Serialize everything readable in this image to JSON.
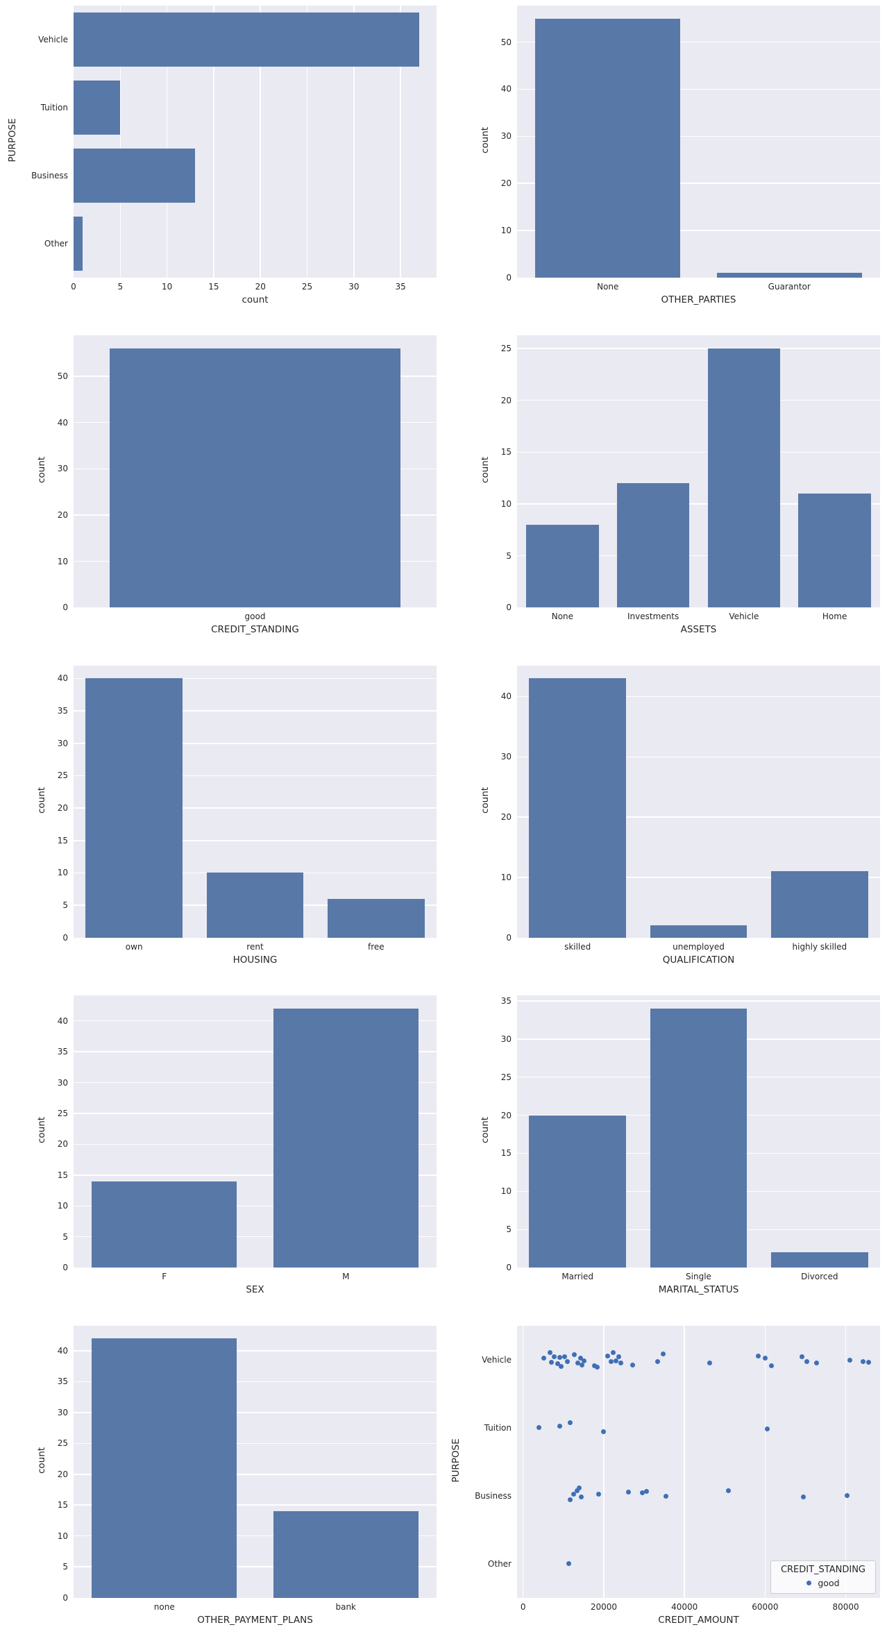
{
  "figure": {
    "background": "#ffffff",
    "grid_rows": 5,
    "grid_cols": 2
  },
  "colors": {
    "bar_fill": "#5878a8",
    "scatter_dot": "#3f6fb5",
    "plot_background": "#eaeaf2",
    "gridline": "#ffffff",
    "text": "#262626",
    "legend_border": "#cccccc"
  },
  "chart_data": [
    {
      "type": "barh",
      "name": "purpose-countplot",
      "ylabel": "PURPOSE",
      "xlabel": "count",
      "categories": [
        "Vehicle",
        "Tuition",
        "Business",
        "Other"
      ],
      "values": [
        37,
        5,
        13,
        1
      ],
      "xticks": [
        0,
        5,
        10,
        15,
        20,
        25,
        30,
        35
      ],
      "xmax": 38.85
    },
    {
      "type": "bar",
      "name": "other-parties-countplot",
      "xlabel": "OTHER_PARTIES",
      "ylabel": "count",
      "categories": [
        "None",
        "Guarantor"
      ],
      "values": [
        55,
        1
      ],
      "yticks": [
        0,
        10,
        20,
        30,
        40,
        50
      ],
      "ymax": 57.75
    },
    {
      "type": "bar",
      "name": "credit-standing-countplot",
      "xlabel": "CREDIT_STANDING",
      "ylabel": "count",
      "categories": [
        "good"
      ],
      "values": [
        56
      ],
      "yticks": [
        0,
        10,
        20,
        30,
        40,
        50
      ],
      "ymax": 58.8
    },
    {
      "type": "bar",
      "name": "assets-countplot",
      "xlabel": "ASSETS",
      "ylabel": "count",
      "categories": [
        "None",
        "Investments",
        "Vehicle",
        "Home"
      ],
      "values": [
        8,
        12,
        25,
        11
      ],
      "yticks": [
        0,
        5,
        10,
        15,
        20,
        25
      ],
      "ymax": 26.25
    },
    {
      "type": "bar",
      "name": "housing-countplot",
      "xlabel": "HOUSING",
      "ylabel": "count",
      "categories": [
        "own",
        "rent",
        "free"
      ],
      "values": [
        40,
        10,
        6
      ],
      "yticks": [
        0,
        5,
        10,
        15,
        20,
        25,
        30,
        35,
        40
      ],
      "ymax": 42
    },
    {
      "type": "bar",
      "name": "qualification-countplot",
      "xlabel": "QUALIFICATION",
      "ylabel": "count",
      "categories": [
        "skilled",
        "unemployed",
        "highly skilled"
      ],
      "values": [
        43,
        2,
        11
      ],
      "yticks": [
        0,
        10,
        20,
        30,
        40
      ],
      "ymax": 45.15
    },
    {
      "type": "bar",
      "name": "sex-countplot",
      "xlabel": "SEX",
      "ylabel": "count",
      "categories": [
        "F",
        "M"
      ],
      "values": [
        14,
        42
      ],
      "yticks": [
        0,
        5,
        10,
        15,
        20,
        25,
        30,
        35,
        40
      ],
      "ymax": 44.1
    },
    {
      "type": "bar",
      "name": "marital-status-countplot",
      "xlabel": "MARITAL_STATUS",
      "ylabel": "count",
      "categories": [
        "Married",
        "Single",
        "Divorced"
      ],
      "values": [
        20,
        34,
        2
      ],
      "yticks": [
        0,
        5,
        10,
        15,
        20,
        25,
        30,
        35
      ],
      "ymax": 35.7
    },
    {
      "type": "bar",
      "name": "other-payment-plans-countplot",
      "xlabel": "OTHER_PAYMENT_PLANS",
      "ylabel": "count",
      "categories": [
        "none",
        "bank"
      ],
      "values": [
        42,
        14
      ],
      "yticks": [
        0,
        5,
        10,
        15,
        20,
        25,
        30,
        35,
        40
      ],
      "ymax": 44.1
    },
    {
      "type": "scatter",
      "name": "credit-amount-vs-purpose-scatter",
      "xlabel": "CREDIT_AMOUNT",
      "ylabel": "PURPOSE",
      "categories": [
        "Vehicle",
        "Tuition",
        "Business",
        "Other"
      ],
      "xticks": [
        0,
        20000,
        40000,
        60000,
        80000
      ],
      "xmin": -1500,
      "xmax": 88500,
      "legend": {
        "title": "CREDIT_STANDING",
        "items": [
          "good"
        ]
      },
      "points": {
        "Vehicle": [
          [
            5200,
            -0.02
          ],
          [
            6600,
            -0.1
          ],
          [
            7000,
            0.04
          ],
          [
            7700,
            -0.04
          ],
          [
            8600,
            0.06
          ],
          [
            9000,
            -0.03
          ],
          [
            9500,
            0.1
          ],
          [
            10300,
            -0.04
          ],
          [
            10900,
            0.03
          ],
          [
            12700,
            -0.07
          ],
          [
            13500,
            0.05
          ],
          [
            14200,
            -0.02
          ],
          [
            14600,
            0.08
          ],
          [
            15100,
            0.02
          ],
          [
            17700,
            0.09
          ],
          [
            18300,
            0.11
          ],
          [
            20900,
            -0.05
          ],
          [
            21800,
            0.03
          ],
          [
            22300,
            -0.1
          ],
          [
            23100,
            0.02
          ],
          [
            23700,
            -0.04
          ],
          [
            24200,
            0.05
          ],
          [
            27200,
            0.08
          ],
          [
            33400,
            0.03
          ],
          [
            34700,
            -0.08
          ],
          [
            46200,
            0.05
          ],
          [
            58300,
            -0.05
          ],
          [
            60100,
            -0.02
          ],
          [
            61500,
            0.09
          ],
          [
            69100,
            -0.04
          ],
          [
            70300,
            0.03
          ],
          [
            72700,
            0.05
          ],
          [
            81000,
            0.01
          ],
          [
            84300,
            0.03
          ],
          [
            85700,
            0.04
          ]
        ],
        "Tuition": [
          [
            4000,
            0.0
          ],
          [
            9000,
            -0.02
          ],
          [
            11600,
            -0.07
          ],
          [
            20000,
            0.06
          ],
          [
            60600,
            0.02
          ]
        ],
        "Business": [
          [
            11700,
            0.06
          ],
          [
            12500,
            -0.02
          ],
          [
            13400,
            -0.07
          ],
          [
            13900,
            -0.11
          ],
          [
            14400,
            0.02
          ],
          [
            18800,
            -0.02
          ],
          [
            26100,
            -0.05
          ],
          [
            29500,
            -0.04
          ],
          [
            30600,
            -0.06
          ],
          [
            35400,
            0.01
          ],
          [
            50900,
            -0.07
          ],
          [
            69500,
            0.02
          ],
          [
            80400,
            0.0
          ]
        ],
        "Other": [
          [
            11400,
            0.0
          ]
        ]
      }
    }
  ]
}
